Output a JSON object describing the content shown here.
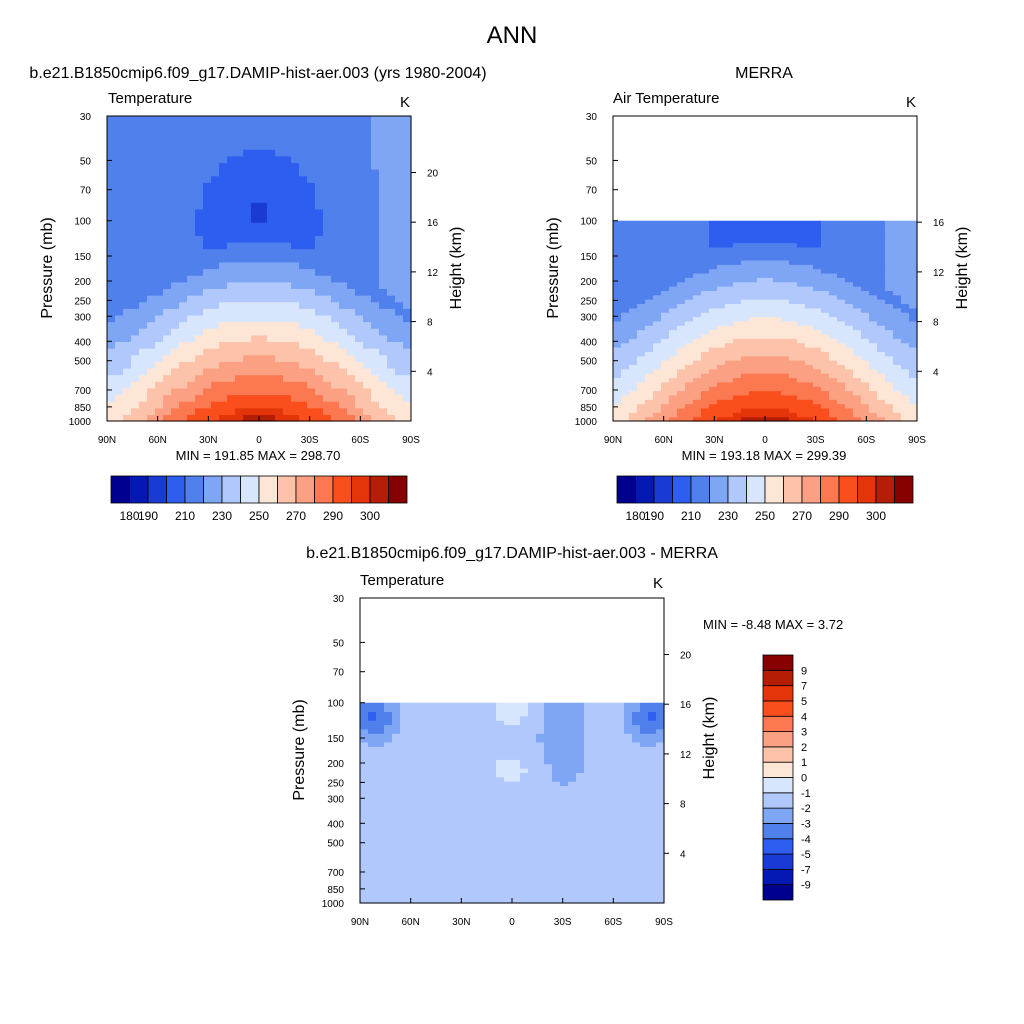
{
  "figure": {
    "title": "ANN"
  },
  "colors": {
    "abs_palette": [
      "#00008f",
      "#0418b4",
      "#1a3ad4",
      "#2d5ef0",
      "#5080ec",
      "#7fa6f5",
      "#b0c8fb",
      "#d8e6fd",
      "#fde6d6",
      "#fcc3aa",
      "#fca083",
      "#fb7850",
      "#fa4f1d",
      "#e43409",
      "#b51e05",
      "#870000"
    ],
    "diff_palette": [
      "#00008f",
      "#0418b4",
      "#1a3ad4",
      "#2d5ef0",
      "#5080ec",
      "#7fa6f5",
      "#b0c8fb",
      "#d8e6fd",
      "#fde6d6",
      "#fcc3aa",
      "#fca083",
      "#fb7850",
      "#fa4f1d",
      "#e43409",
      "#b51e05",
      "#870000"
    ]
  },
  "chart_data": [
    {
      "type": "heatmap",
      "id": "model",
      "title": "b.e21.B1850cmip6.f09_g17.DAMIP-hist-aer.003 (yrs 1980-2004)",
      "variable_label": "Temperature",
      "units": "K",
      "ylabel": "Pressure (mb)",
      "y2label": "Height (km)",
      "x_ticks": [
        "90N",
        "60N",
        "30N",
        "0",
        "30S",
        "60S",
        "90S"
      ],
      "y_ticks": [
        "30",
        "50",
        "70",
        "100",
        "150",
        "200",
        "250",
        "300",
        "400",
        "500",
        "700",
        "850",
        "1000"
      ],
      "y2_ticks": [
        "4",
        "8",
        "12",
        "16",
        "20"
      ],
      "stats": "MIN = 191.85  MAX = 298.70",
      "colorbar_labels": [
        "180",
        "190",
        "210",
        "230",
        "250",
        "270",
        "290",
        "300"
      ],
      "ylim": [
        1000,
        30
      ],
      "zmin": 191.85,
      "zmax": 298.7
    },
    {
      "type": "heatmap",
      "id": "obs",
      "title": "MERRA",
      "variable_label": "Air Temperature",
      "units": "K",
      "ylabel": "Pressure (mb)",
      "y2label": "Height (km)",
      "x_ticks": [
        "90N",
        "60N",
        "30N",
        "0",
        "30S",
        "60S",
        "90S"
      ],
      "y_ticks": [
        "30",
        "50",
        "70",
        "100",
        "150",
        "200",
        "250",
        "300",
        "400",
        "500",
        "700",
        "850",
        "1000"
      ],
      "y2_ticks": [
        "4",
        "8",
        "12",
        "16"
      ],
      "stats": "MIN = 193.18  MAX = 299.39",
      "colorbar_labels": [
        "180",
        "190",
        "210",
        "230",
        "250",
        "270",
        "290",
        "300"
      ],
      "ylim": [
        1000,
        30
      ],
      "data_top": 100,
      "zmin": 193.18,
      "zmax": 299.39
    },
    {
      "type": "heatmap",
      "id": "diff",
      "title": "b.e21.B1850cmip6.f09_g17.DAMIP-hist-aer.003 - MERRA",
      "variable_label": "Temperature",
      "units": "K",
      "ylabel": "Pressure (mb)",
      "y2label": "Height (km)",
      "x_ticks": [
        "90N",
        "60N",
        "30N",
        "0",
        "30S",
        "60S",
        "90S"
      ],
      "y_ticks": [
        "30",
        "50",
        "70",
        "100",
        "150",
        "200",
        "250",
        "300",
        "400",
        "500",
        "700",
        "850",
        "1000"
      ],
      "y2_ticks": [
        "4",
        "8",
        "12",
        "16",
        "20"
      ],
      "stats": "MIN =  -8.48  MAX =   3.72",
      "colorbar_labels": [
        "9",
        "7",
        "5",
        "4",
        "3",
        "2",
        "1",
        "0",
        "-1",
        "-2",
        "-3",
        "-4",
        "-5",
        "-7",
        "-9"
      ],
      "ylim": [
        1000,
        30
      ],
      "data_top": 100,
      "zmin": -8.48,
      "zmax": 3.72
    }
  ]
}
